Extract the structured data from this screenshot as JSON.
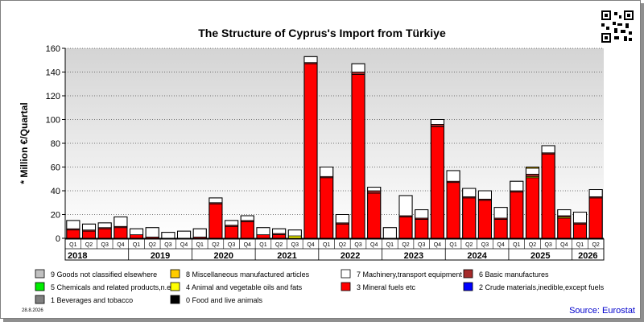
{
  "title": "The Structure of Cyprus's Import from Türkiye",
  "date_stamp": "28.8.2026",
  "source": "Source: Eurostat",
  "chart_data": {
    "type": "bar",
    "stacked": true,
    "title": "The Structure of Cyprus's Import from Türkiye",
    "ylabel": "* Million €/Quartal",
    "ylim": [
      0,
      160
    ],
    "yticks": [
      0,
      20,
      40,
      60,
      80,
      100,
      120,
      140,
      160
    ],
    "grid": true,
    "legend_position": "bottom",
    "years": [
      {
        "label": "2018",
        "quarters": 4
      },
      {
        "label": "2019",
        "quarters": 4
      },
      {
        "label": "2020",
        "quarters": 4
      },
      {
        "label": "2021",
        "quarters": 4
      },
      {
        "label": "2022",
        "quarters": 4
      },
      {
        "label": "2023",
        "quarters": 4
      },
      {
        "label": "2024",
        "quarters": 4
      },
      {
        "label": "2025",
        "quarters": 4
      },
      {
        "label": "2026",
        "quarters": 2
      }
    ],
    "categories": [
      "Q1",
      "Q2",
      "Q3",
      "Q4",
      "Q1",
      "Q2",
      "Q3",
      "Q4",
      "Q1",
      "Q2",
      "Q3",
      "Q4",
      "Q1",
      "Q2",
      "Q3",
      "Q4",
      "Q1",
      "Q2",
      "Q3",
      "Q4",
      "Q1",
      "Q2",
      "Q3",
      "Q4",
      "Q1",
      "Q2",
      "Q3",
      "Q4",
      "Q1",
      "Q2",
      "Q3",
      "Q4",
      "Q1",
      "Q2"
    ],
    "series": [
      {
        "name": "0 Food and live animals",
        "color": "#000000",
        "values": [
          0,
          0,
          0,
          0,
          0,
          0,
          0,
          0,
          0,
          0,
          0,
          0,
          0,
          0,
          0,
          0,
          0,
          0,
          0,
          0,
          0,
          0,
          0,
          0,
          0,
          0,
          0,
          0,
          0,
          0,
          0,
          0,
          0,
          0
        ]
      },
      {
        "name": "1 Beverages and tobacco",
        "color": "#808080",
        "values": [
          0,
          0,
          0,
          0,
          0,
          0,
          0,
          0,
          0,
          0,
          0,
          0,
          0,
          0,
          0,
          0,
          0,
          0,
          0,
          0,
          0,
          0,
          0,
          0,
          0,
          0,
          0,
          0,
          0,
          0,
          0,
          0,
          0,
          0
        ]
      },
      {
        "name": "2 Crude materials,inedible,except fuels",
        "color": "#0000ff",
        "values": [
          0,
          0,
          0,
          0,
          0,
          0,
          0,
          0,
          0,
          0,
          0,
          0,
          0,
          0,
          0,
          0,
          0,
          0,
          0,
          0,
          0,
          0,
          0,
          0,
          0,
          0,
          0,
          0,
          0,
          0,
          0,
          0,
          0,
          0
        ]
      },
      {
        "name": "3 Mineral fuels etc",
        "color": "#ff0000",
        "values": [
          7,
          6,
          8,
          9,
          3,
          1,
          0,
          0,
          1,
          29,
          10,
          14,
          3,
          3,
          0,
          147,
          51,
          12,
          138,
          38,
          0,
          18,
          16,
          94,
          47,
          34,
          32,
          16,
          39,
          51,
          71,
          17,
          12,
          34
        ]
      },
      {
        "name": "4 Animal and vegetable oils and fats",
        "color": "#ffff00",
        "values": [
          0,
          0,
          0,
          0,
          0,
          0,
          0,
          0,
          0,
          0,
          0,
          0,
          0,
          0,
          2,
          0,
          0,
          0,
          0,
          0,
          0,
          0,
          0,
          0,
          0,
          0,
          0,
          0,
          0,
          1,
          0,
          1,
          0,
          0
        ]
      },
      {
        "name": "5 Chemicals and related products,n.e.s.",
        "color": "#00ee00",
        "values": [
          0,
          0,
          0,
          0,
          0,
          0,
          0,
          0,
          0,
          0,
          0,
          0,
          0,
          0,
          0,
          0,
          0,
          0,
          0,
          0,
          0,
          0,
          0,
          0,
          0,
          0,
          0,
          0,
          0,
          0,
          0,
          0,
          0,
          0
        ]
      },
      {
        "name": "6 Basic manufactures",
        "color": "#a52a2a",
        "values": [
          1,
          1,
          1,
          1,
          0,
          0,
          0,
          0,
          0,
          1,
          1,
          1,
          0,
          1,
          0,
          1,
          1,
          1,
          2,
          2,
          0,
          1,
          1,
          2,
          1,
          1,
          1,
          1,
          1,
          2,
          1,
          1,
          1,
          1
        ]
      },
      {
        "name": "7 Machinery,transport equipment",
        "color": "#ffffff",
        "values": [
          7,
          5,
          4,
          8,
          5,
          8,
          5,
          6,
          7,
          4,
          4,
          4,
          6,
          4,
          5,
          5,
          8,
          7,
          7,
          3,
          9,
          17,
          7,
          4,
          9,
          7,
          7,
          9,
          8,
          5,
          6,
          5,
          9,
          6
        ]
      },
      {
        "name": "8 Miscellaneous manufactured articles",
        "color": "#ffcc00",
        "values": [
          0,
          0,
          0,
          0,
          0,
          0,
          0,
          0,
          0,
          0,
          0,
          0,
          0,
          0,
          0,
          0,
          0,
          0,
          0,
          0,
          0,
          0,
          0,
          0,
          0,
          0,
          0,
          0,
          0,
          1,
          0,
          0,
          0,
          0
        ]
      },
      {
        "name": "9 Goods not classified elsewhere",
        "color": "#c0c0c0",
        "values": [
          0,
          0,
          0,
          0,
          0,
          0,
          0,
          0,
          0,
          0,
          0,
          0,
          0,
          0,
          0,
          0,
          0,
          0,
          0,
          0,
          0,
          0,
          0,
          0,
          0,
          0,
          0,
          0,
          0,
          0,
          0,
          0,
          0,
          0
        ]
      }
    ],
    "legend_order": [
      9,
      8,
      7,
      6,
      5,
      4,
      3,
      2,
      1,
      0
    ]
  }
}
